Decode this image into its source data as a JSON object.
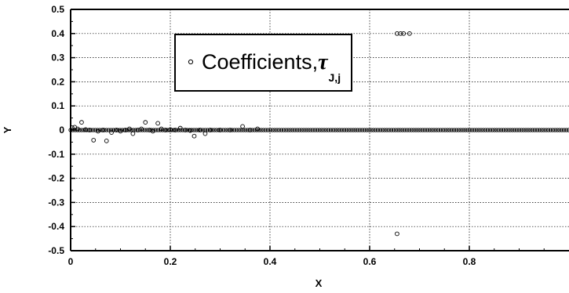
{
  "chart_data": {
    "type": "scatter",
    "xlabel": "X",
    "ylabel": "Y",
    "xlim": [
      0,
      1.0
    ],
    "ylim": [
      -0.5,
      0.5
    ],
    "xticks": [
      "0",
      "0.2",
      "0.4",
      "0.6",
      "0.8"
    ],
    "yticks": [
      "0.5",
      "0.4",
      "0.3",
      "0.2",
      "0.1",
      "0",
      "-0.1",
      "-0.2",
      "-0.3",
      "-0.4",
      "-0.5"
    ],
    "grid": true,
    "legend_position": "upper-left",
    "series": [
      {
        "name": "Coefficients,τ_J,j",
        "marker": "open-circle",
        "color": "#000000",
        "points": [
          [
            0.003,
            0.01
          ],
          [
            0.008,
            0.012
          ],
          [
            0.014,
            0.005
          ],
          [
            0.022,
            0.032
          ],
          [
            0.03,
            0.002
          ],
          [
            0.038,
            0.0
          ],
          [
            0.046,
            -0.042
          ],
          [
            0.055,
            -0.005
          ],
          [
            0.065,
            0.0
          ],
          [
            0.072,
            -0.045
          ],
          [
            0.082,
            -0.01
          ],
          [
            0.092,
            0.0
          ],
          [
            0.1,
            -0.005
          ],
          [
            0.11,
            0.0
          ],
          [
            0.118,
            0.005
          ],
          [
            0.125,
            -0.015
          ],
          [
            0.135,
            0.0
          ],
          [
            0.142,
            0.005
          ],
          [
            0.15,
            0.032
          ],
          [
            0.158,
            0.0
          ],
          [
            0.165,
            -0.005
          ],
          [
            0.175,
            0.028
          ],
          [
            0.182,
            0.005
          ],
          [
            0.19,
            0.0
          ],
          [
            0.2,
            0.002
          ],
          [
            0.21,
            0.0
          ],
          [
            0.22,
            0.008
          ],
          [
            0.23,
            0.0
          ],
          [
            0.24,
            -0.002
          ],
          [
            0.248,
            -0.025
          ],
          [
            0.26,
            0.0
          ],
          [
            0.27,
            -0.015
          ],
          [
            0.28,
            0.0
          ],
          [
            0.3,
            0.0
          ],
          [
            0.32,
            0.0
          ],
          [
            0.345,
            0.015
          ],
          [
            0.36,
            0.0
          ],
          [
            0.375,
            0.005
          ],
          [
            0.655,
            -0.43
          ],
          [
            0.655,
            0.4
          ],
          [
            0.662,
            0.4
          ],
          [
            0.668,
            0.4
          ],
          [
            0.68,
            0.4
          ]
        ],
        "baseline": {
          "x_start": 0.0,
          "x_end": 1.0,
          "step": 0.0045,
          "y": 0.0
        }
      }
    ]
  }
}
